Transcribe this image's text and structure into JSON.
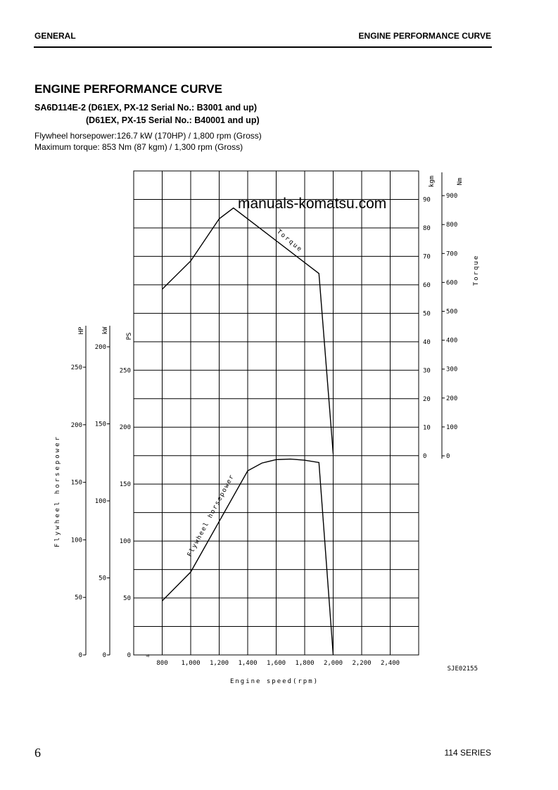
{
  "header": {
    "left": "GENERAL",
    "right": "ENGINE PERFORMANCE CURVE"
  },
  "title": "ENGINE PERFORMANCE CURVE",
  "subtitle_1": "SA6D114E-2 (D61EX, PX-12 Serial No.: B3001 and up)",
  "subtitle_2": "(D61EX, PX-15 Serial No.: B40001 and up)",
  "spec_1": "Flywheel horsepower:126.7 kW (170HP) / 1,800 rpm (Gross)",
  "spec_2": "Maximum torque: 853 Nm (87 kgm) / 1,300 rpm (Gross)",
  "footer": {
    "page": "6",
    "series": "114 SERIES"
  },
  "watermark": "manuals-komatsu.com",
  "chart_data": {
    "type": "line",
    "xlabel": "Engine speed(rpm)",
    "x_ticks": [
      "800",
      "1,000",
      "1,200",
      "1,400",
      "1,600",
      "1,800",
      "2,000",
      "2,200",
      "2,400"
    ],
    "x_tick_values": [
      800,
      1000,
      1200,
      1400,
      1600,
      1800,
      2000,
      2200,
      2400
    ],
    "xlim": [
      600,
      2600
    ],
    "grid": true,
    "figure_code": "SJE02155",
    "left_axes": {
      "label": "Flywheel horsepower",
      "PS": {
        "unit": "PS",
        "ticks": [
          0,
          50,
          100,
          150,
          200,
          250
        ],
        "range": [
          0,
          425
        ]
      },
      "kW": {
        "unit": "kW",
        "ticks": [
          0,
          50,
          100,
          150,
          200
        ]
      },
      "HP": {
        "unit": "HP",
        "ticks": [
          0,
          50,
          100,
          150,
          200,
          250
        ]
      }
    },
    "right_axes": {
      "label": "Torque",
      "kgm": {
        "unit": "kgm",
        "ticks": [
          0,
          10,
          20,
          30,
          40,
          50,
          60,
          70,
          80,
          90
        ],
        "range": [
          0,
          100
        ]
      },
      "Nm": {
        "unit": "Nm",
        "ticks": [
          0,
          100,
          200,
          300,
          400,
          500,
          600,
          700,
          800,
          900
        ]
      }
    },
    "series": [
      {
        "name": "Torque",
        "axis": "kgm",
        "x": [
          800,
          1000,
          1200,
          1300,
          1900,
          2000
        ],
        "y": [
          58.5,
          68.4,
          83.2,
          87,
          64,
          0.7
        ]
      },
      {
        "name": "Flywheel horsepower",
        "axis": "PS",
        "x": [
          800,
          1000,
          1400,
          1500,
          1600,
          1700,
          1800,
          1900,
          2000
        ],
        "y": [
          47.5,
          72.8,
          161.7,
          168.5,
          171.5,
          172,
          171,
          169,
          0
        ]
      }
    ]
  }
}
